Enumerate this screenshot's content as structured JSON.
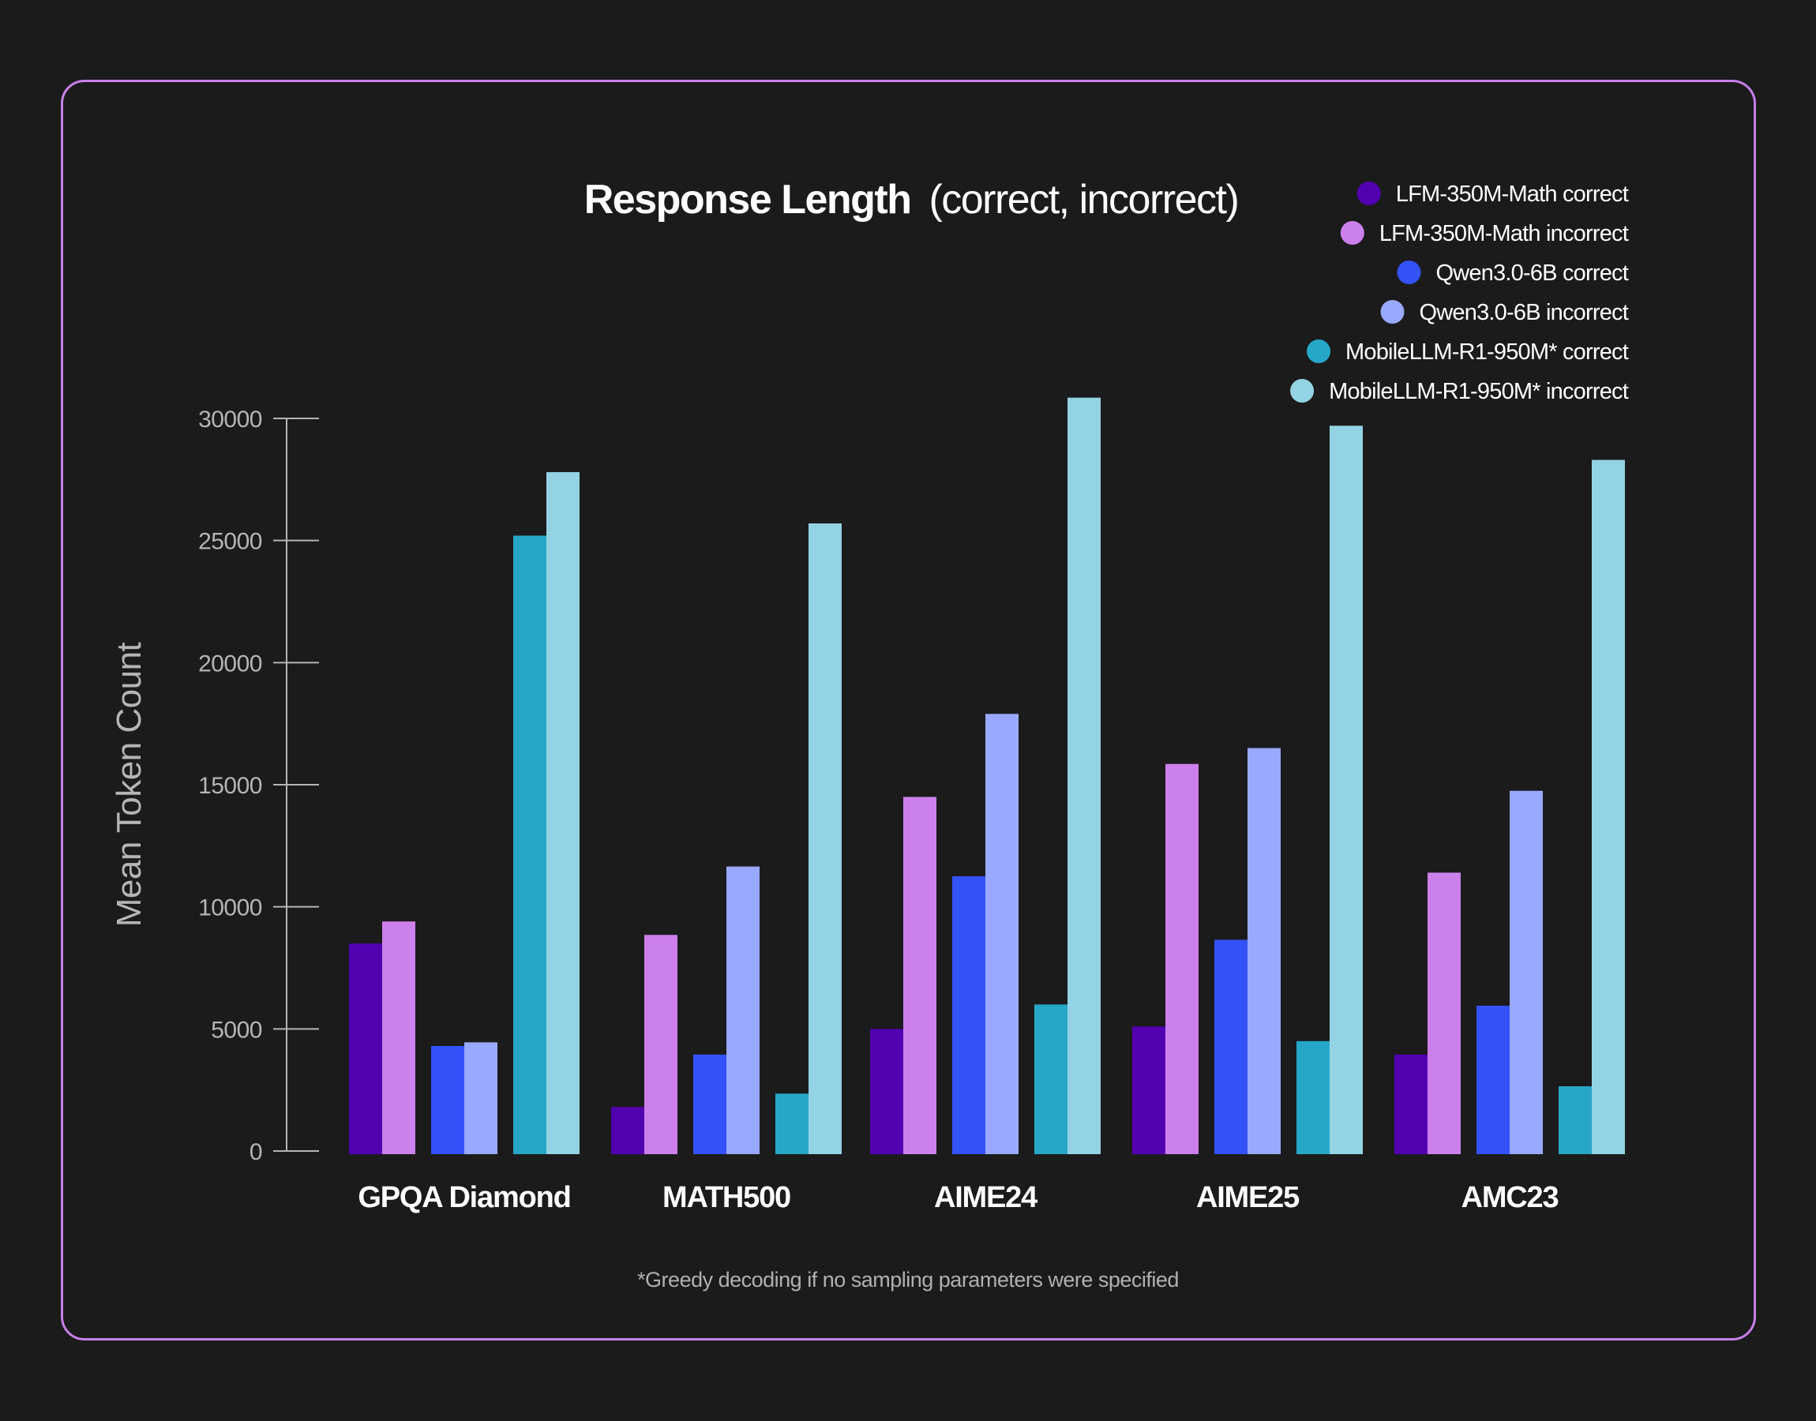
{
  "chart_data": {
    "type": "bar",
    "title": "Response Length (correct, incorrect)",
    "title_bold": "Response Length",
    "title_regular": "(correct, incorrect)",
    "xlabel": "",
    "ylabel": "Mean Token Count",
    "ylim": [
      0,
      30000
    ],
    "yticks": [
      0,
      5000,
      10000,
      15000,
      20000,
      25000,
      30000
    ],
    "ytick_labels": [
      "0",
      "5000",
      "10000",
      "15000",
      "20000",
      "25000",
      "30000"
    ],
    "grid": false,
    "legend_position": "top-right",
    "categories": [
      "GPQA Diamond",
      "MATH500",
      "AIME24",
      "AIME25",
      "AMC23"
    ],
    "series": [
      {
        "name": "LFM-350M-Math correct",
        "color": "#5201b0",
        "values": [
          8500,
          1800,
          5000,
          5100,
          3950
        ]
      },
      {
        "name": "LFM-350M-Math incorrect",
        "color": "#cc80ec",
        "values": [
          9400,
          8850,
          14500,
          15850,
          11400
        ]
      },
      {
        "name": "Qwen3.0-6B correct",
        "color": "#3452fa",
        "values": [
          4300,
          3950,
          11250,
          8650,
          5950
        ]
      },
      {
        "name": "Qwen3.0-6B incorrect",
        "color": "#98a9ff",
        "values": [
          4450,
          11650,
          17900,
          16500,
          14750
        ]
      },
      {
        "name": "MobileLLM-R1-950M* correct",
        "color": "#27a7c8",
        "values": [
          25200,
          2350,
          6000,
          4500,
          2650
        ]
      },
      {
        "name": "MobileLLM-R1-950M* incorrect",
        "color": "#94d3e3",
        "values": [
          27800,
          25700,
          30850,
          29700,
          28300
        ]
      }
    ],
    "footnote": "*Greedy decoding if no sampling parameters were specified"
  },
  "colors": {
    "background": "#1b1b1b",
    "frame_border": "#c77fe8",
    "axis": "#b5b5b5"
  }
}
